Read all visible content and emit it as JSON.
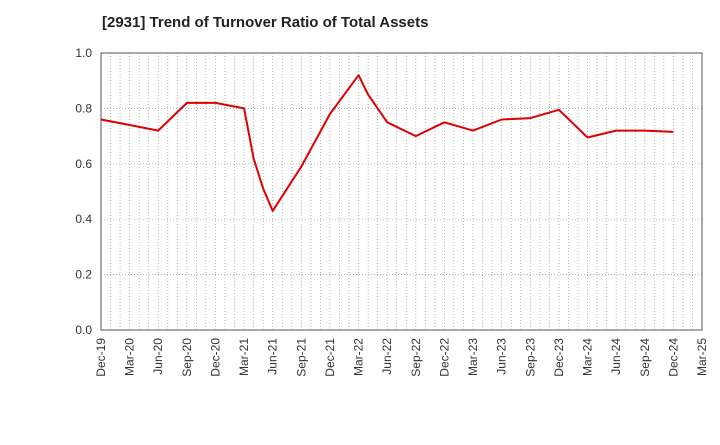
{
  "chart_data": {
    "type": "line",
    "title": "[2931]  Trend of Turnover Ratio of Total Assets",
    "xlabel": "",
    "ylabel": "",
    "ylim": [
      0,
      1.0
    ],
    "yticks": [
      "0.0",
      "0.2",
      "0.4",
      "0.6",
      "0.8",
      "1.0"
    ],
    "xticks": [
      "Dec-19",
      "Mar-20",
      "Jun-20",
      "Sep-20",
      "Dec-20",
      "Mar-21",
      "Jun-21",
      "Sep-21",
      "Dec-21",
      "Mar-22",
      "Jun-22",
      "Sep-22",
      "Dec-22",
      "Mar-23",
      "Jun-23",
      "Sep-23",
      "Dec-23",
      "Mar-24",
      "Jun-24",
      "Sep-24",
      "Dec-24",
      "Mar-25"
    ],
    "grid": true,
    "series": [
      {
        "color": "#e00000",
        "points": [
          [
            "Dec-19",
            0.76
          ],
          [
            "Mar-20",
            0.74
          ],
          [
            "Jun-20",
            0.72
          ],
          [
            "Sep-20",
            0.82
          ],
          [
            "Dec-20",
            0.82
          ],
          [
            "Mar-21",
            0.8
          ],
          [
            "Apr-21",
            0.62
          ],
          [
            "May-21",
            0.51
          ],
          [
            "Jun-21",
            0.43
          ],
          [
            "Sep-21",
            0.59
          ],
          [
            "Dec-21",
            0.78
          ],
          [
            "Mar-22",
            0.92
          ],
          [
            "Apr-22",
            0.85
          ],
          [
            "Jun-22",
            0.75
          ],
          [
            "Sep-22",
            0.7
          ],
          [
            "Dec-22",
            0.75
          ],
          [
            "Mar-23",
            0.72
          ],
          [
            "Jun-23",
            0.76
          ],
          [
            "Sep-23",
            0.765
          ],
          [
            "Dec-23",
            0.795
          ],
          [
            "Mar-24",
            0.695
          ],
          [
            "Jun-24",
            0.72
          ],
          [
            "Sep-24",
            0.72
          ],
          [
            "Dec-24",
            0.715
          ]
        ]
      }
    ]
  }
}
